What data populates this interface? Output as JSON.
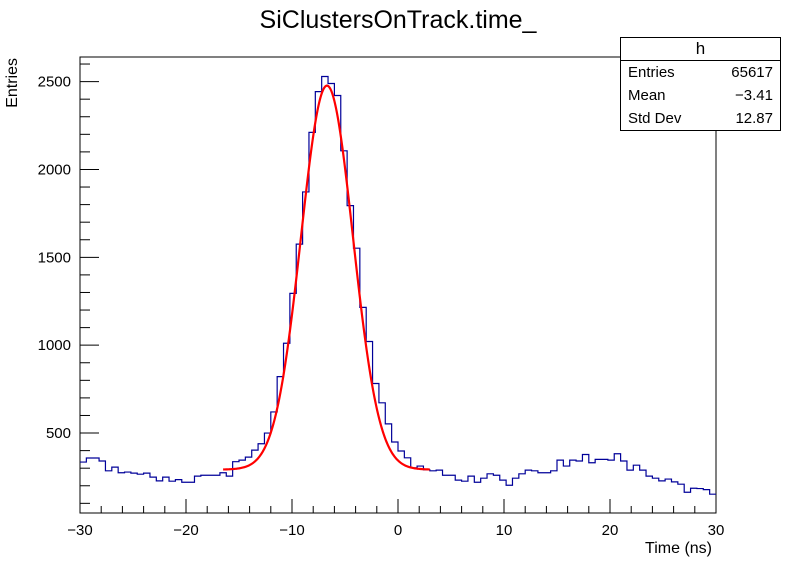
{
  "chart_data": {
    "type": "histogram",
    "title": "SiClustersOnTrack.time_",
    "xlabel": "Time (ns)",
    "ylabel": "Entries",
    "xlim": [
      -30,
      30
    ],
    "ylim": [
      45,
      2640
    ],
    "bin_width": 0.6,
    "x_ticks": [
      "−30",
      "−20",
      "−10",
      "0",
      "10",
      "20",
      "30"
    ],
    "x_tick_values": [
      -30,
      -20,
      -10,
      0,
      10,
      20,
      30
    ],
    "y_ticks": [
      "500",
      "1000",
      "1500",
      "2000",
      "2500"
    ],
    "y_tick_values": [
      500,
      1000,
      1500,
      2000,
      2500
    ],
    "grid": false,
    "histogram_color": "#000099",
    "fit_color": "#ff0000",
    "values": [
      335,
      358,
      358,
      341,
      285,
      306,
      274,
      278,
      272,
      266,
      272,
      249,
      228,
      249,
      226,
      235,
      220,
      220,
      255,
      260,
      260,
      260,
      274,
      255,
      337,
      346,
      363,
      403,
      439,
      500,
      620,
      821,
      1011,
      1295,
      1575,
      1872,
      2211,
      2443,
      2529,
      2489,
      2421,
      2106,
      1794,
      1552,
      1215,
      1021,
      782,
      672,
      552,
      449,
      398,
      359,
      302,
      312,
      291,
      285,
      289,
      260,
      260,
      232,
      226,
      255,
      220,
      243,
      268,
      260,
      232,
      203,
      243,
      268,
      289,
      285,
      274,
      274,
      285,
      346,
      312,
      346,
      341,
      378,
      331,
      350,
      350,
      346,
      382,
      341,
      289,
      317,
      289,
      255,
      243,
      228,
      238,
      222,
      209,
      163,
      186,
      184,
      178,
      152
    ],
    "fit": {
      "function": "gaus + const",
      "constant": 2185,
      "mean": -6.7,
      "sigma": 2.45,
      "baseline": 292,
      "range": [
        -16.5,
        3.0
      ]
    }
  },
  "stats_box": {
    "title": "h",
    "rows": [
      {
        "label": "Entries",
        "value": "65617"
      },
      {
        "label": "Mean",
        "value": "−3.41"
      },
      {
        "label": "Std Dev",
        "value": "12.87"
      }
    ]
  }
}
